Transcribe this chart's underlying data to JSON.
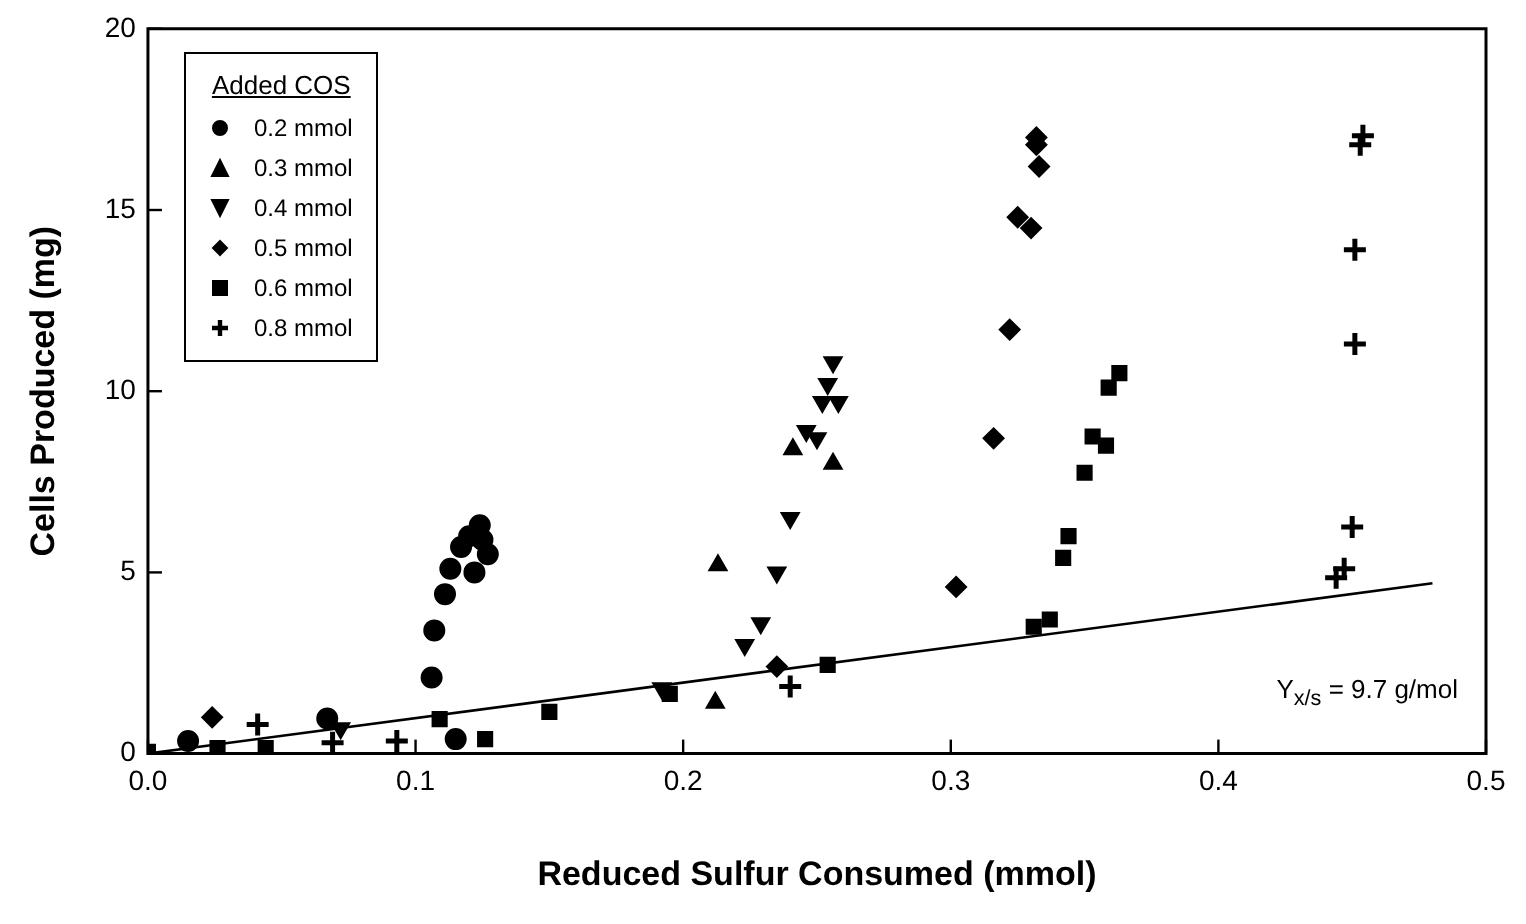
{
  "chart_data": {
    "type": "scatter",
    "xlabel": "Reduced Sulfur Consumed (mmol)",
    "ylabel": "Cells Produced (mg)",
    "legend_title": "Added COS",
    "legend": "top left",
    "grid": false,
    "xlim": [
      0,
      0.5
    ],
    "xticks": [
      {
        "value": 0,
        "label": "0.0"
      },
      {
        "value": 0.1,
        "label": "0.1"
      },
      {
        "value": 0.2,
        "label": "0.2"
      },
      {
        "value": 0.3,
        "label": "0.3"
      },
      {
        "value": 0.4,
        "label": "0.4"
      },
      {
        "value": 0.5,
        "label": "0.5"
      }
    ],
    "ylim": [
      0,
      20
    ],
    "yticks": [
      0,
      5,
      10,
      15,
      20
    ],
    "annotations": [
      "Y$_{x/s}$ = 9.7 g/mol"
    ],
    "series": [
      {
        "name": "0.2 mmol",
        "color": "#000000",
        "marker": "circle",
        "x": [
          0.015,
          0.067,
          0.106,
          0.107,
          0.111,
          0.113,
          0.117,
          0.12,
          0.124,
          0.122,
          0.127,
          0.125,
          0.115
        ],
        "values": [
          0.35,
          0.97,
          2.1,
          3.4,
          4.4,
          5.1,
          5.7,
          6.0,
          6.3,
          5.0,
          5.5,
          5.9,
          0.4
        ]
      },
      {
        "name": "0.3 mmol",
        "color": "#000000",
        "marker": "triangle",
        "x": [
          0.212,
          0.213,
          0.241,
          0.256
        ],
        "values": [
          1.4,
          5.2,
          8.4,
          8.0
        ]
      },
      {
        "name": "0.4 mmol",
        "color": "#000000",
        "marker": "triangle-down",
        "x": [
          0.072,
          0.192,
          0.223,
          0.229,
          0.235,
          0.24,
          0.246,
          0.25,
          0.256,
          0.254,
          0.258,
          0.252
        ],
        "values": [
          0.7,
          1.8,
          3.0,
          3.6,
          5.0,
          6.5,
          8.9,
          8.7,
          10.8,
          10.2,
          9.7,
          9.7
        ]
      },
      {
        "name": "0.5 mmol",
        "color": "#000000",
        "marker": "diamond",
        "x": [
          0.024,
          0.235,
          0.302,
          0.316,
          0.322,
          0.325,
          0.33,
          0.332,
          0.333,
          0.332
        ],
        "values": [
          1.0,
          2.4,
          4.6,
          8.7,
          11.7,
          14.8,
          14.5,
          16.8,
          16.2,
          17.0
        ]
      },
      {
        "name": "0.6 mmol",
        "color": "#000000",
        "marker": "square",
        "x": [
          0,
          0.026,
          0.044,
          0.109,
          0.126,
          0.15,
          0.195,
          0.254,
          0.331,
          0.337,
          0.342,
          0.344,
          0.35,
          0.353,
          0.358,
          0.359,
          0.363
        ],
        "values": [
          0.05,
          0.15,
          0.15,
          0.95,
          0.4,
          1.15,
          1.65,
          2.45,
          3.5,
          3.7,
          5.4,
          6.0,
          7.75,
          8.75,
          8.5,
          10.1,
          10.5
        ]
      },
      {
        "name": "0.8 mmol",
        "color": "#000000",
        "marker": "cross",
        "x": [
          0.041,
          0.069,
          0.093,
          0.24,
          0.444,
          0.447,
          0.45,
          0.451,
          0.451,
          0.453,
          0.454
        ],
        "values": [
          0.8,
          0.3,
          0.35,
          1.85,
          4.85,
          5.1,
          6.25,
          11.3,
          13.9,
          16.8,
          17.05
        ]
      },
      {
        "type": "line",
        "color": "#000000",
        "marker": "none",
        "line_style": "solid",
        "x": [
          0,
          0.48
        ],
        "values": [
          0,
          4.7
        ]
      }
    ]
  }
}
